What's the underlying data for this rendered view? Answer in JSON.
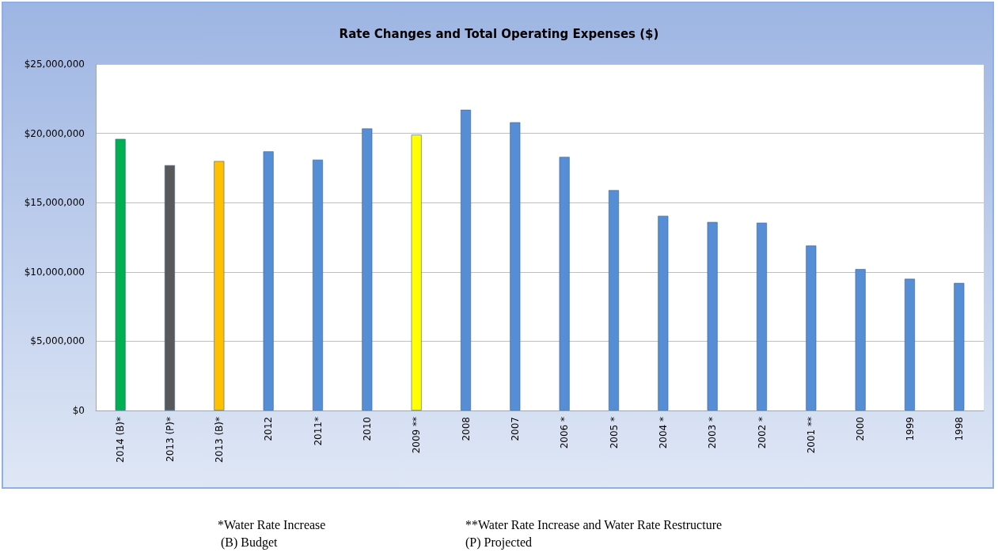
{
  "chart_data": {
    "type": "bar",
    "title": "Rate Changes and Total Operating Expenses ($)",
    "categories": [
      "2014 (B)*",
      "2013 (P)*",
      "2013 (B)*",
      "2012",
      "2011*",
      "2010",
      "2009 **",
      "2008",
      "2007",
      "2006 *",
      "2005 *",
      "2004 *",
      "2003 *",
      "2002 *",
      "2001 **",
      "2000",
      "1999",
      "1998"
    ],
    "values": [
      19600000,
      17700000,
      18000000,
      18700000,
      18100000,
      20350000,
      19900000,
      21700000,
      20800000,
      18300000,
      15900000,
      14050000,
      13600000,
      13550000,
      11900000,
      10200000,
      9500000,
      9200000
    ],
    "colors": [
      "#00b050",
      "#595959",
      "#ffc000",
      "#558ed5",
      "#558ed5",
      "#558ed5",
      "#ffff00",
      "#558ed5",
      "#558ed5",
      "#558ed5",
      "#558ed5",
      "#558ed5",
      "#558ed5",
      "#558ed5",
      "#558ed5",
      "#558ed5",
      "#558ed5",
      "#558ed5"
    ],
    "ylim": [
      0,
      25000000
    ],
    "yticks": [
      {
        "value": 0,
        "label": "$0"
      },
      {
        "value": 5000000,
        "label": "$5,000,000"
      },
      {
        "value": 10000000,
        "label": "$10,000,000"
      },
      {
        "value": 15000000,
        "label": "$15,000,000"
      },
      {
        "value": 20000000,
        "label": "$20,000,000"
      },
      {
        "value": 25000000,
        "label": "$25,000,000"
      }
    ],
    "grid": "y",
    "annotations": [
      "*Water Rate Increase",
      "**Water Rate Increase and Water Rate Restructure",
      " (B) Budget",
      "(P) Projected"
    ]
  }
}
